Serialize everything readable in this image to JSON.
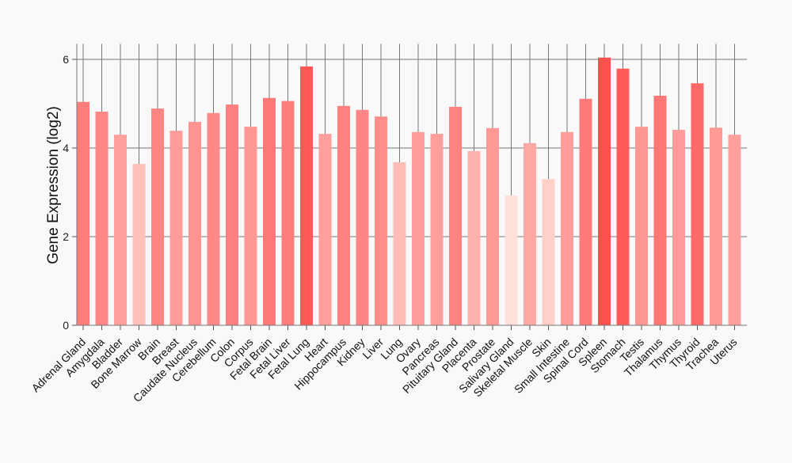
{
  "chart_data": {
    "type": "bar",
    "title": "",
    "xlabel": "",
    "ylabel": "Gene Expression (log2)",
    "ylim": [
      0,
      6.35
    ],
    "yticks": [
      0,
      2,
      4,
      6
    ],
    "grid": true,
    "categories": [
      "Adrenal Gland",
      "Amygdala",
      "Bladder",
      "Bone Marrow",
      "Brain",
      "Breast",
      "Caudate Nucleus",
      "Cerebellum",
      "Colon",
      "Corpus",
      "Fetal Brain",
      "Fetal Liver",
      "Fetal Lung",
      "Heart",
      "Hippocampus",
      "Kidney",
      "Liver",
      "Lung",
      "Ovary",
      "Pancreas",
      "Pituitary Gland",
      "Placenta",
      "Prostate",
      "Salivary Gland",
      "Skeletal Muscle",
      "Skin",
      "Small Intestine",
      "Spinal Cord",
      "Spleen",
      "Stomach",
      "Testis",
      "Thalamus",
      "Thymus",
      "Thyroid",
      "Trachea",
      "Uterus"
    ],
    "values": [
      5.04,
      4.82,
      4.3,
      3.64,
      4.89,
      4.39,
      4.59,
      4.79,
      4.98,
      4.48,
      5.13,
      5.06,
      5.84,
      4.32,
      4.95,
      4.86,
      4.71,
      3.68,
      4.36,
      4.32,
      4.93,
      3.93,
      4.45,
      2.93,
      4.11,
      3.3,
      4.36,
      5.11,
      6.04,
      5.79,
      4.48,
      5.18,
      4.41,
      5.46,
      4.46,
      4.3
    ],
    "color_low": "#ffe0da",
    "color_high": "#ff4f4f"
  }
}
